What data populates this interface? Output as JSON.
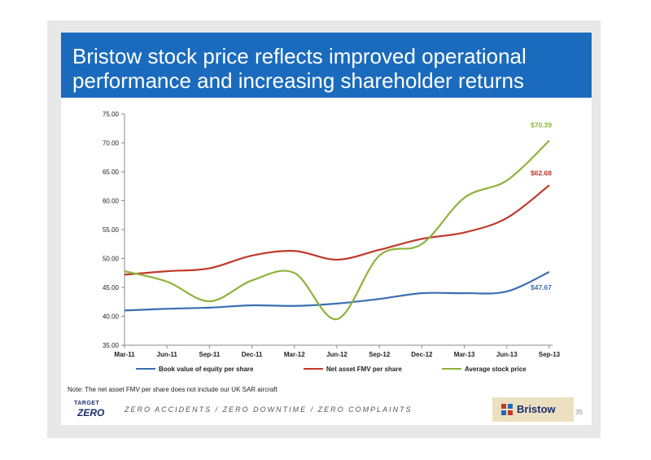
{
  "slide": {
    "title": "Bristow stock price reflects improved operational performance and increasing shareholder returns",
    "note": "Note: The net asset FMV per share does not include our UK SAR aircraft",
    "page_number": "35"
  },
  "footer": {
    "logo_top": "TARGET",
    "logo_bottom": "ZERO",
    "tagline": "ZERO ACCIDENTS / ZERO DOWNTIME / ZERO COMPLAINTS",
    "brand": "Bristow"
  },
  "colors": {
    "title_bar": "#1a6bbd",
    "book_value": "#3a6fb0",
    "net_asset": "#c0392b",
    "stock_price": "#8db33a"
  },
  "chart_data": {
    "type": "line",
    "categories": [
      "Mar-11",
      "Jun-11",
      "Sep-11",
      "Dec-11",
      "Mar-12",
      "Jun-12",
      "Sep-12",
      "Dec-12",
      "Mar-13",
      "Jun-13",
      "Sep-13"
    ],
    "y_ticks": [
      "75.00",
      "70.00",
      "65.00",
      "60.00",
      "55.00",
      "50.00",
      "45.00",
      "40.00",
      "35.00"
    ],
    "ylim": [
      35,
      75
    ],
    "grid": false,
    "legend_position": "bottom",
    "series": [
      {
        "name": "Book value of equity per share",
        "values": [
          41.0,
          41.3,
          41.5,
          41.9,
          41.8,
          42.2,
          43.0,
          44.0,
          44.0,
          44.3,
          47.67
        ],
        "color": "#3a6fb0",
        "end_label": "$47.67"
      },
      {
        "name": "Net asset FMV per share",
        "values": [
          47.2,
          47.8,
          48.3,
          50.5,
          51.3,
          49.8,
          51.5,
          53.4,
          54.5,
          57.0,
          62.68
        ],
        "color": "#c0392b",
        "end_label": "$62.68"
      },
      {
        "name": "Average stock price",
        "values": [
          47.8,
          46.0,
          42.6,
          46.2,
          47.5,
          39.5,
          50.5,
          52.5,
          60.5,
          63.5,
          70.39
        ],
        "color": "#8db33a",
        "end_label": "$70.39"
      }
    ]
  }
}
